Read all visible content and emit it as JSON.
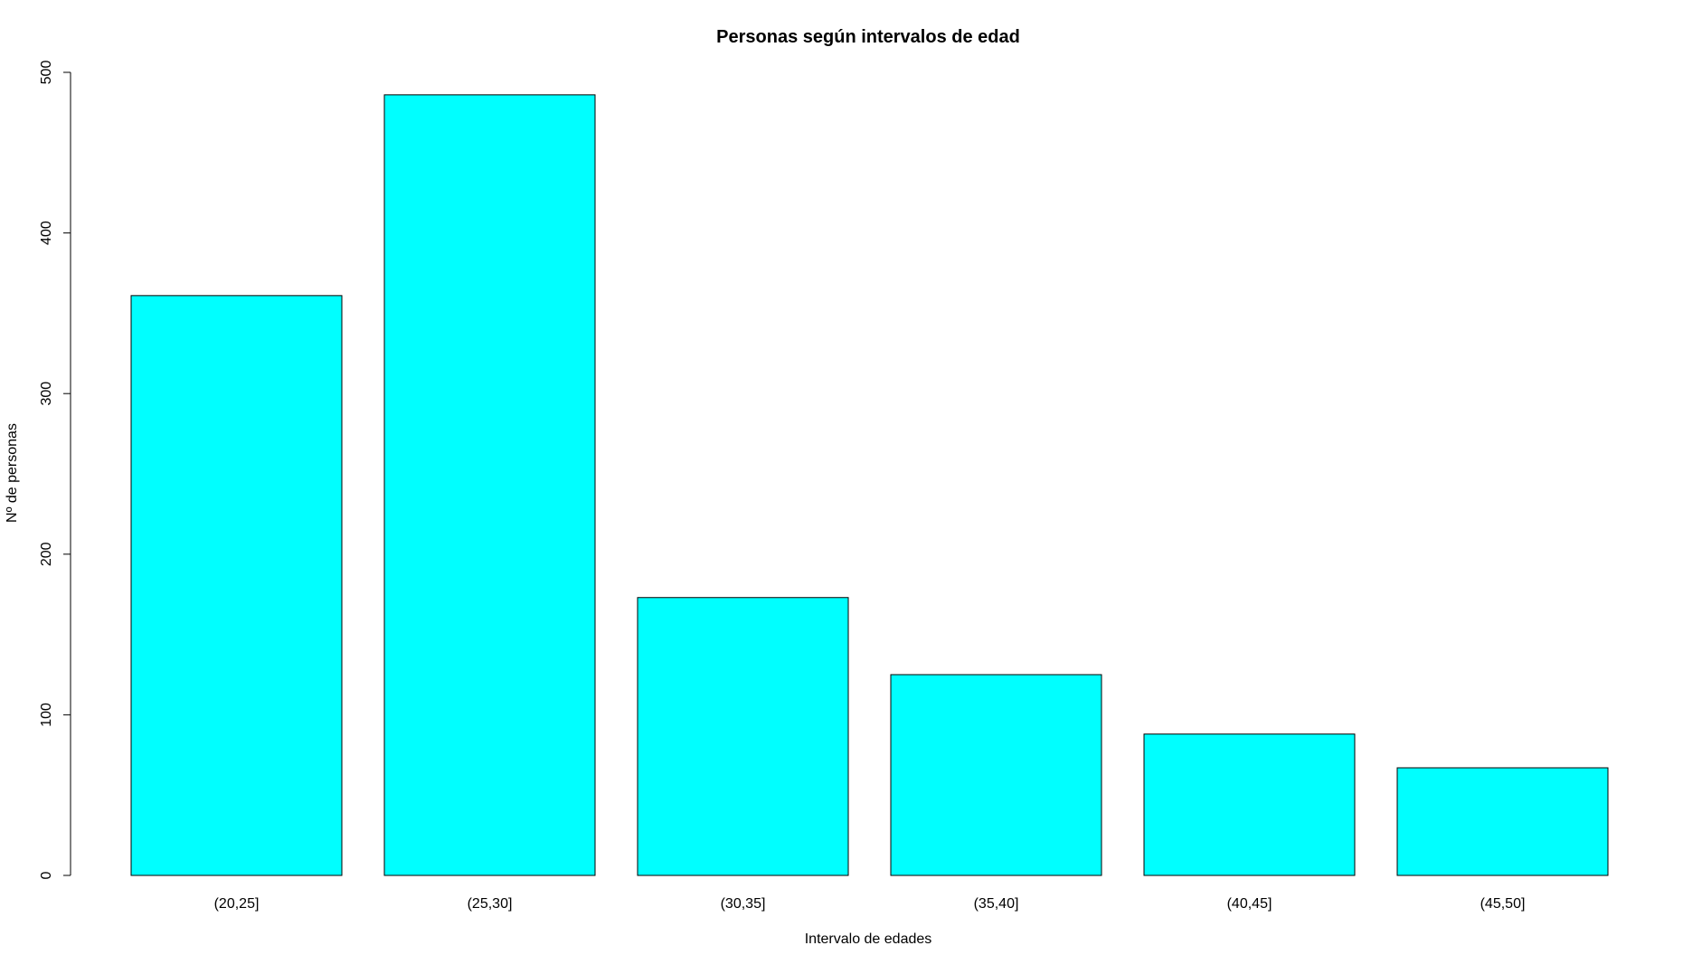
{
  "chart_data": {
    "type": "bar",
    "title": "Personas según intervalos de edad",
    "xlabel": "Intervalo de edades",
    "ylabel": "Nº de personas",
    "categories": [
      "(20,25]",
      "(25,30]",
      "(30,35]",
      "(35,40]",
      "(40,45]",
      "(45,50]"
    ],
    "values": [
      361,
      486,
      173,
      125,
      88,
      67
    ],
    "ylim": [
      0,
      500
    ],
    "yticks": [
      0,
      100,
      200,
      300,
      400,
      500
    ],
    "bar_color": "#00FFFF",
    "grid": false,
    "legend": "none"
  }
}
